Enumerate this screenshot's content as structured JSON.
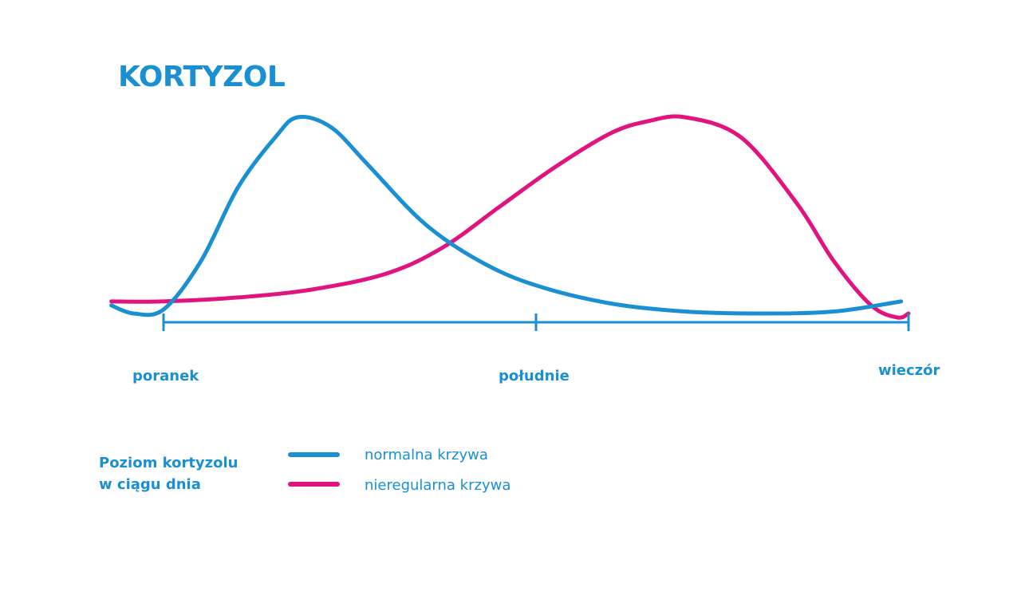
{
  "chart_data": {
    "type": "line",
    "title": "KORTYZOL",
    "xlabel": "",
    "ylabel": "",
    "x_ticks": [
      "poranek",
      "południe",
      "wieczór"
    ],
    "legend": {
      "title_lines": [
        "Poziom kortyzolu",
        "w ciągu dnia"
      ],
      "position": "bottom-left"
    },
    "axis_color": "#1a8fd1",
    "series": [
      {
        "name": "normalna krzywa",
        "color": "#1a8fd1",
        "points": [
          [
            -0.14,
            0.06
          ],
          [
            -0.08,
            0.02
          ],
          [
            0.0,
            0.04
          ],
          [
            0.1,
            0.28
          ],
          [
            0.2,
            0.65
          ],
          [
            0.3,
            0.9
          ],
          [
            0.36,
            1.0
          ],
          [
            0.45,
            0.95
          ],
          [
            0.55,
            0.76
          ],
          [
            0.7,
            0.47
          ],
          [
            0.85,
            0.28
          ],
          [
            1.0,
            0.16
          ],
          [
            1.2,
            0.07
          ],
          [
            1.4,
            0.03
          ],
          [
            1.6,
            0.02
          ],
          [
            1.8,
            0.03
          ],
          [
            1.98,
            0.08
          ]
        ]
      },
      {
        "name": "nieregularna krzywa",
        "color": "#e0137f",
        "points": [
          [
            -0.14,
            0.08
          ],
          [
            0.0,
            0.08
          ],
          [
            0.2,
            0.1
          ],
          [
            0.4,
            0.14
          ],
          [
            0.6,
            0.22
          ],
          [
            0.75,
            0.35
          ],
          [
            0.9,
            0.55
          ],
          [
            1.05,
            0.75
          ],
          [
            1.2,
            0.92
          ],
          [
            1.3,
            0.98
          ],
          [
            1.4,
            1.0
          ],
          [
            1.55,
            0.9
          ],
          [
            1.7,
            0.57
          ],
          [
            1.8,
            0.28
          ],
          [
            1.9,
            0.06
          ],
          [
            1.97,
            0.0
          ],
          [
            2.0,
            0.02
          ]
        ]
      }
    ]
  }
}
